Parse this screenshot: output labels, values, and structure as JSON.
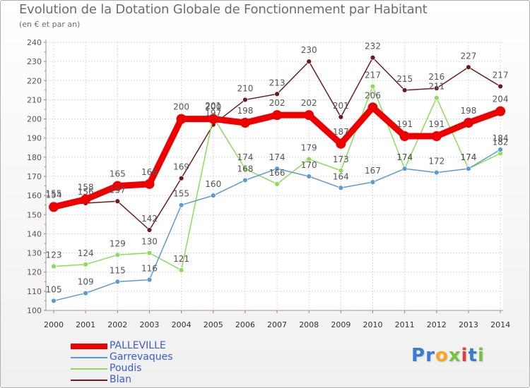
{
  "chart_data": {
    "type": "line",
    "title": "Evolution de la Dotation Globale de Fonctionnement par Habitant",
    "subtitle": "(en € et par an)",
    "xlabel": "",
    "ylabel": "",
    "ylim": [
      100,
      240
    ],
    "ytick_step": 10,
    "categories": [
      "2000",
      "2001",
      "2002",
      "2003",
      "2004",
      "2005",
      "2006",
      "2007",
      "2008",
      "2009",
      "2010",
      "2011",
      "2012",
      "2013",
      "2014"
    ],
    "series": [
      {
        "name": "PALLEVILLE",
        "color": "#ee0000",
        "values": [
          154,
          158,
          165,
          166,
          200,
          200,
          198,
          202,
          202,
          187,
          206,
          191,
          191,
          198,
          204
        ]
      },
      {
        "name": "Garrevaques",
        "color": "#5a9bd4",
        "values": [
          105,
          109,
          115,
          116,
          155,
          160,
          168,
          174,
          170,
          164,
          167,
          174,
          172,
          174,
          184
        ]
      },
      {
        "name": "Poudis",
        "color": "#8edb5a",
        "values": [
          123,
          124,
          129,
          130,
          121,
          201,
          174,
          166,
          179,
          173,
          217,
          174,
          211,
          174,
          182
        ]
      },
      {
        "name": "Blan",
        "color": "#6b1b1b",
        "values": [
          155,
          156,
          157,
          142,
          169,
          197,
          210,
          213,
          230,
          201,
          232,
          215,
          216,
          227,
          217
        ]
      }
    ]
  },
  "brand": {
    "text": "Proxiti",
    "letters": [
      "P",
      "r",
      "o",
      "x",
      "i",
      "t",
      "i"
    ],
    "colors": [
      "#3a7bd5",
      "#3a7bd5",
      "#f5a623",
      "#7ac143",
      "#e23d3d",
      "#3a7bd5",
      "#7ac143"
    ]
  }
}
